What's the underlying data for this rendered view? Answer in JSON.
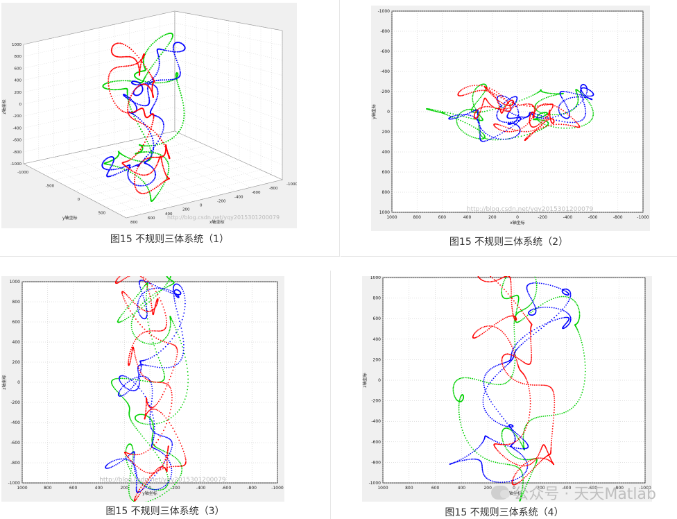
{
  "captions": [
    "图15 不规则三体系统（1）",
    "图15 不规则三体系统（2）",
    "图15 不规则三体系统（3）",
    "图15 不规则三体系统（4）"
  ],
  "watermark": "公众号 · 天天Matlab",
  "blog_watermark_1": "http://blog.csdn.net/yqy2015301200079",
  "blog_watermark_2": "http://blog.csdn.net/yqy2015301200079",
  "colors": {
    "body1": "#ff0000",
    "body2": "#0000ff",
    "body3": "#00d000",
    "panel_bg": "#f0f0f0",
    "grid": "#c0c0c0"
  },
  "chart_data": [
    {
      "type": "scatter",
      "title": "",
      "view": "3d",
      "xlabel": "x轴坐标",
      "ylabel": "y轴坐标",
      "zlabel": "z轴坐标",
      "x_ticks": [
        "-1000",
        "-800",
        "-600",
        "-400",
        "-200",
        "0",
        "200",
        "400",
        "600",
        "800"
      ],
      "y_ticks": [
        "-1000",
        "-500",
        "0",
        "500"
      ],
      "z_ticks": [
        "1000",
        "800",
        "600",
        "400",
        "200",
        "0",
        "-200",
        "-400",
        "-600",
        "-800",
        "-1000"
      ],
      "xlim": [
        -1000,
        1000
      ],
      "ylim": [
        -1000,
        1000
      ],
      "zlim": [
        -1000,
        1000
      ],
      "grid": true,
      "series": [
        {
          "color": "#ff0000",
          "description": "red body trajectory"
        },
        {
          "color": "#0000ff",
          "description": "blue body trajectory"
        },
        {
          "color": "#00d000",
          "description": "green body trajectory"
        }
      ]
    },
    {
      "type": "scatter",
      "title": "",
      "view": "x-y",
      "xlabel": "x轴坐标",
      "ylabel": "y轴坐标",
      "x_ticks": [
        "1000",
        "800",
        "600",
        "400",
        "200",
        "0",
        "-200",
        "-400",
        "-600",
        "-800",
        "-1000"
      ],
      "y_ticks": [
        "-1000",
        "-800",
        "-600",
        "-400",
        "-200",
        "0",
        "200",
        "400",
        "600",
        "800",
        "1000"
      ],
      "xlim": [
        1000,
        -1000
      ],
      "ylim": [
        -1000,
        1000
      ],
      "grid": true
    },
    {
      "type": "scatter",
      "title": "",
      "view": "y-z",
      "xlabel": "y轴坐标",
      "ylabel": "z轴坐标",
      "x_ticks": [
        "1000",
        "800",
        "600",
        "400",
        "200",
        "0",
        "-200",
        "-400",
        "-600",
        "-800",
        "-1000"
      ],
      "y_ticks": [
        "1000",
        "800",
        "600",
        "400",
        "200",
        "0",
        "-200",
        "-400",
        "-600",
        "-800",
        "-1000"
      ],
      "xlim": [
        1000,
        -1000
      ],
      "ylim": [
        -1000,
        1000
      ],
      "grid": true
    },
    {
      "type": "scatter",
      "title": "",
      "view": "x-z",
      "xlabel": "x轴坐标",
      "ylabel": "z轴坐标",
      "x_ticks": [
        "1000",
        "800",
        "600",
        "400",
        "200",
        "0",
        "-200",
        "-400",
        "-600",
        "-800",
        "-1000"
      ],
      "y_ticks": [
        "1000",
        "800",
        "600",
        "400",
        "200",
        "0",
        "-200",
        "-400",
        "-600",
        "-800",
        "-1000"
      ],
      "xlim": [
        1000,
        -1000
      ],
      "ylim": [
        -1000,
        1000
      ],
      "grid": true
    }
  ]
}
